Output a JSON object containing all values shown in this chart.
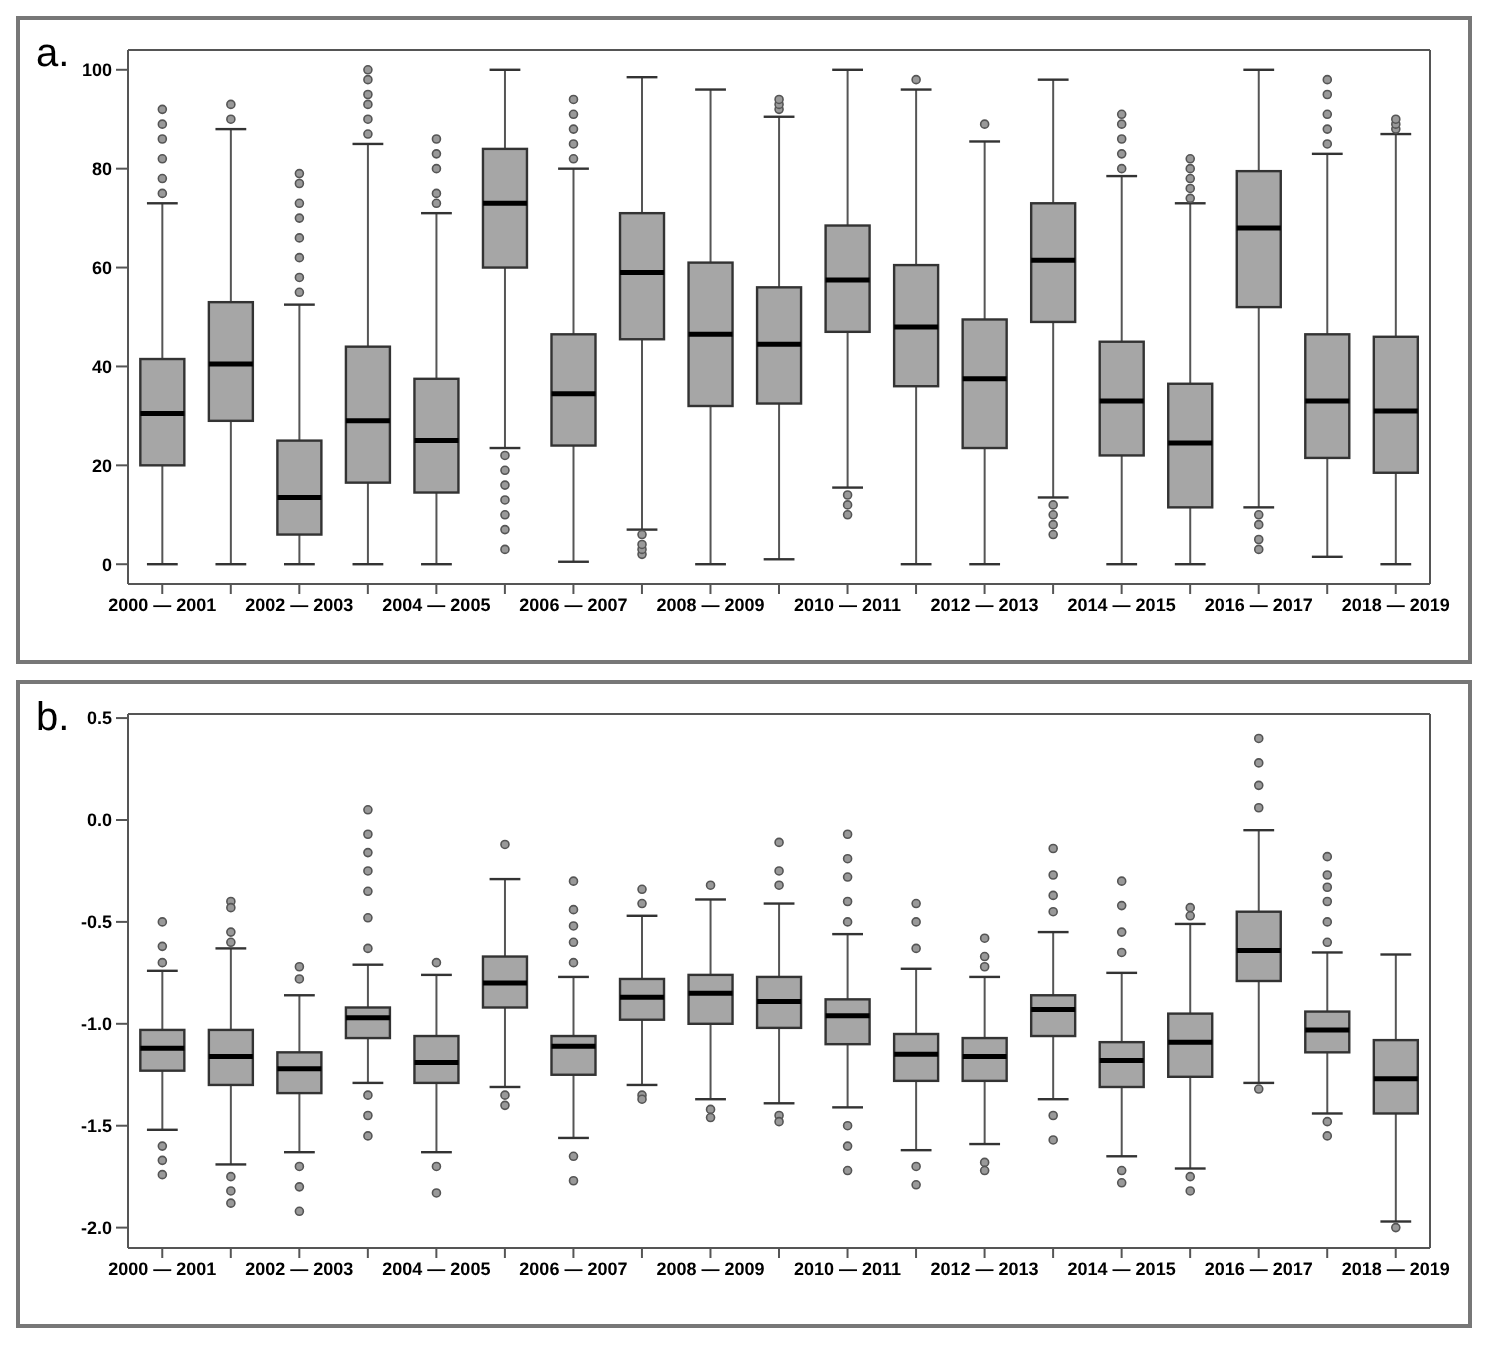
{
  "chart_data": [
    {
      "type": "box",
      "title": "a.",
      "color": "#a6a6a6",
      "ylim": [
        -4,
        104
      ],
      "yticks": [
        0,
        20,
        40,
        60,
        80,
        100
      ],
      "categories": [
        "2000 — 2001",
        null,
        "2002 — 2003",
        null,
        "2004 — 2005",
        null,
        "2006 — 2007",
        null,
        "2008 — 2009",
        null,
        "2010 — 2011",
        null,
        "2012 — 2013",
        null,
        "2014 — 2015",
        null,
        "2016 — 2017",
        null,
        "2018 — 2019"
      ],
      "boxes": [
        {
          "low": 0,
          "q1": 20,
          "median": 30.5,
          "q3": 41.5,
          "high": 73,
          "outliers": [
            75,
            78,
            82,
            86,
            89,
            92
          ]
        },
        {
          "low": 0,
          "q1": 29,
          "median": 40.5,
          "q3": 53,
          "high": 88,
          "outliers": [
            90,
            93
          ]
        },
        {
          "low": 0,
          "q1": 6,
          "median": 13.5,
          "q3": 25,
          "high": 52.5,
          "outliers": [
            55,
            58,
            62,
            66,
            70,
            73,
            77,
            79
          ]
        },
        {
          "low": 0,
          "q1": 16.5,
          "median": 29,
          "q3": 44,
          "high": 85,
          "outliers": [
            87,
            90,
            93,
            95,
            98,
            100
          ]
        },
        {
          "low": 0,
          "q1": 14.5,
          "median": 25,
          "q3": 37.5,
          "high": 71,
          "outliers": [
            73,
            75,
            80,
            83,
            86
          ]
        },
        {
          "low": 23.5,
          "q1": 60,
          "median": 73,
          "q3": 84,
          "high": 100,
          "outliers": [
            3,
            7,
            10,
            13,
            16,
            19,
            22
          ]
        },
        {
          "low": 0.5,
          "q1": 24,
          "median": 34.5,
          "q3": 46.5,
          "high": 80,
          "outliers": [
            82,
            85,
            88,
            91,
            94
          ]
        },
        {
          "low": 7,
          "q1": 45.5,
          "median": 59,
          "q3": 71,
          "high": 98.5,
          "outliers": [
            2,
            3,
            4,
            6
          ]
        },
        {
          "low": 0,
          "q1": 32,
          "median": 46.5,
          "q3": 61,
          "high": 96
        },
        {
          "low": 1,
          "q1": 32.5,
          "median": 44.5,
          "q3": 56,
          "high": 90.5,
          "outliers": [
            92,
            93,
            94
          ]
        },
        {
          "low": 15.5,
          "q1": 47,
          "median": 57.5,
          "q3": 68.5,
          "high": 100,
          "outliers": [
            10,
            12,
            14
          ]
        },
        {
          "low": 0,
          "q1": 36,
          "median": 48,
          "q3": 60.5,
          "high": 96,
          "outliers": [
            98
          ]
        },
        {
          "low": 0,
          "q1": 23.5,
          "median": 37.5,
          "q3": 49.5,
          "high": 85.5,
          "outliers": [
            89
          ]
        },
        {
          "low": 13.5,
          "q1": 49,
          "median": 61.5,
          "q3": 73,
          "high": 98,
          "outliers": [
            6,
            8,
            10,
            12
          ]
        },
        {
          "low": 0,
          "q1": 22,
          "median": 33,
          "q3": 45,
          "high": 78.5,
          "outliers": [
            80,
            83,
            86,
            89,
            91
          ]
        },
        {
          "low": 0,
          "q1": 11.5,
          "median": 24.5,
          "q3": 36.5,
          "high": 73,
          "outliers": [
            74,
            76,
            78,
            80,
            82
          ]
        },
        {
          "low": 11.5,
          "q1": 52,
          "median": 68,
          "q3": 79.5,
          "high": 100,
          "outliers": [
            3,
            5,
            8,
            10
          ]
        },
        {
          "low": 1.5,
          "q1": 21.5,
          "median": 33,
          "q3": 46.5,
          "high": 83,
          "outliers": [
            85,
            88,
            91,
            95,
            98
          ]
        },
        {
          "low": 0,
          "q1": 18.5,
          "median": 31,
          "q3": 46,
          "high": 87,
          "outliers": [
            88,
            89,
            90
          ]
        }
      ]
    },
    {
      "type": "box",
      "title": "b.",
      "color": "#a6a6a6",
      "ylim": [
        -2.1,
        0.52
      ],
      "yticks": [
        {
          "value": 0.5,
          "label": "0.5"
        },
        {
          "value": 0,
          "label": "0.0"
        },
        {
          "value": -0.5,
          "label": "-0.5"
        },
        {
          "value": -1,
          "label": "-1.0"
        },
        {
          "value": -1.5,
          "label": "-1.5"
        },
        {
          "value": -2,
          "label": "-2.0"
        }
      ],
      "categories": [
        "2000 — 2001",
        null,
        "2002 — 2003",
        null,
        "2004 — 2005",
        null,
        "2006 — 2007",
        null,
        "2008 — 2009",
        null,
        "2010 — 2011",
        null,
        "2012 — 2013",
        null,
        "2014 — 2015",
        null,
        "2016 — 2017",
        null,
        "2018 — 2019"
      ],
      "boxes": [
        {
          "low": -1.52,
          "q1": -1.23,
          "median": -1.12,
          "q3": -1.03,
          "high": -0.74,
          "outliers": [
            -0.5,
            -0.62,
            -0.7,
            -1.6,
            -1.67,
            -1.74
          ]
        },
        {
          "low": -1.69,
          "q1": -1.3,
          "median": -1.16,
          "q3": -1.03,
          "high": -0.63,
          "outliers": [
            -0.4,
            -0.43,
            -0.55,
            -0.6,
            -1.75,
            -1.82,
            -1.88
          ]
        },
        {
          "low": -1.63,
          "q1": -1.34,
          "median": -1.22,
          "q3": -1.14,
          "high": -0.86,
          "outliers": [
            -0.72,
            -0.78,
            -1.7,
            -1.8,
            -1.92
          ]
        },
        {
          "low": -1.29,
          "q1": -1.07,
          "median": -0.97,
          "q3": -0.92,
          "high": -0.71,
          "outliers": [
            0.05,
            -0.07,
            -0.16,
            -0.25,
            -0.35,
            -0.48,
            -0.63,
            -1.35,
            -1.45,
            -1.55
          ]
        },
        {
          "low": -1.63,
          "q1": -1.29,
          "median": -1.19,
          "q3": -1.06,
          "high": -0.76,
          "outliers": [
            -0.7,
            -1.7,
            -1.83
          ]
        },
        {
          "low": -1.31,
          "q1": -0.92,
          "median": -0.8,
          "q3": -0.67,
          "high": -0.29,
          "outliers": [
            -0.12,
            -1.35,
            -1.4
          ]
        },
        {
          "low": -1.56,
          "q1": -1.25,
          "median": -1.11,
          "q3": -1.06,
          "high": -0.77,
          "outliers": [
            -0.3,
            -0.44,
            -0.52,
            -0.6,
            -0.7,
            -1.65,
            -1.77
          ]
        },
        {
          "low": -1.3,
          "q1": -0.98,
          "median": -0.87,
          "q3": -0.78,
          "high": -0.47,
          "outliers": [
            -0.34,
            -0.41,
            -1.35,
            -1.37
          ]
        },
        {
          "low": -1.37,
          "q1": -1.0,
          "median": -0.85,
          "q3": -0.76,
          "high": -0.39,
          "outliers": [
            -0.32,
            -1.42,
            -1.46
          ]
        },
        {
          "low": -1.39,
          "q1": -1.02,
          "median": -0.89,
          "q3": -0.77,
          "high": -0.41,
          "outliers": [
            -0.11,
            -0.25,
            -0.32,
            -1.45,
            -1.48
          ]
        },
        {
          "low": -1.41,
          "q1": -1.1,
          "median": -0.96,
          "q3": -0.88,
          "high": -0.56,
          "outliers": [
            -0.07,
            -0.19,
            -0.28,
            -0.4,
            -0.5,
            -1.5,
            -1.6,
            -1.72
          ]
        },
        {
          "low": -1.62,
          "q1": -1.28,
          "median": -1.15,
          "q3": -1.05,
          "high": -0.73,
          "outliers": [
            -0.41,
            -0.5,
            -0.63,
            -1.7,
            -1.79
          ]
        },
        {
          "low": -1.59,
          "q1": -1.28,
          "median": -1.16,
          "q3": -1.07,
          "high": -0.77,
          "outliers": [
            -0.58,
            -0.67,
            -0.72,
            -1.68,
            -1.72
          ]
        },
        {
          "low": -1.37,
          "q1": -1.06,
          "median": -0.93,
          "q3": -0.86,
          "high": -0.55,
          "outliers": [
            -0.14,
            -0.27,
            -0.37,
            -0.45,
            -1.45,
            -1.57
          ]
        },
        {
          "low": -1.65,
          "q1": -1.31,
          "median": -1.18,
          "q3": -1.09,
          "high": -0.75,
          "outliers": [
            -0.3,
            -0.42,
            -0.55,
            -0.65,
            -1.72,
            -1.78
          ]
        },
        {
          "low": -1.71,
          "q1": -1.26,
          "median": -1.09,
          "q3": -0.95,
          "high": -0.51,
          "outliers": [
            -0.43,
            -0.47,
            -1.75,
            -1.82
          ]
        },
        {
          "low": -1.29,
          "q1": -0.79,
          "median": -0.64,
          "q3": -0.45,
          "high": -0.05,
          "outliers": [
            0.4,
            0.28,
            0.17,
            0.06,
            -1.32
          ]
        },
        {
          "low": -1.44,
          "q1": -1.14,
          "median": -1.03,
          "q3": -0.94,
          "high": -0.65,
          "outliers": [
            -0.18,
            -0.27,
            -0.33,
            -0.4,
            -0.5,
            -0.6,
            -1.48,
            -1.55
          ]
        },
        {
          "low": -1.97,
          "q1": -1.44,
          "median": -1.27,
          "q3": -1.08,
          "high": -0.66,
          "outliers": [
            -2.0
          ]
        }
      ]
    }
  ]
}
